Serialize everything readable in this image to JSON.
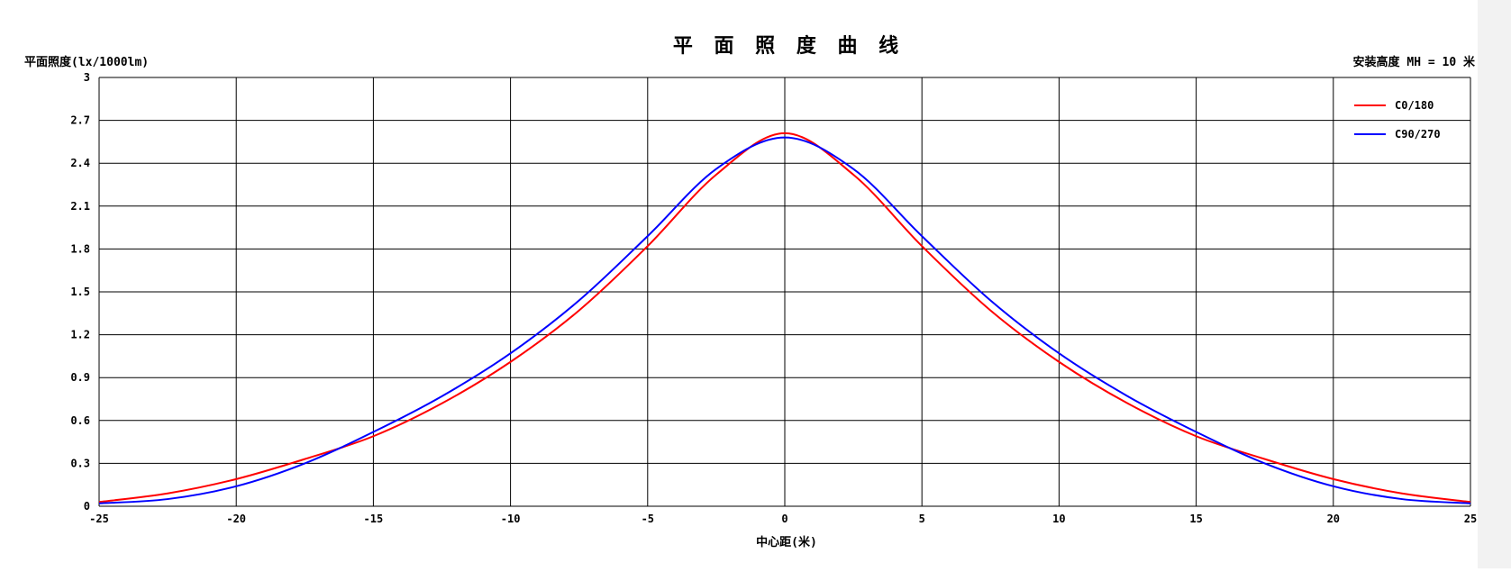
{
  "chart_data": {
    "type": "line",
    "title": "平 面 照 度 曲 线",
    "ylabel": "平面照度(lx/1000lm)",
    "xlabel": "中心距(米)",
    "annotation": "安装高度 MH = 10 米",
    "xlim": [
      -25,
      25
    ],
    "ylim": [
      0,
      3
    ],
    "xticks": [
      -25,
      -20,
      -15,
      -10,
      -5,
      0,
      5,
      10,
      15,
      20,
      25
    ],
    "xtick_labels": [
      "-25",
      "-20",
      "-15",
      "-10",
      "-5",
      "0",
      "5",
      "10",
      "15",
      "20",
      "25"
    ],
    "yticks": [
      0,
      0.3,
      0.6,
      0.9,
      1.2,
      1.5,
      1.8,
      2.1,
      2.4,
      2.7,
      3
    ],
    "ytick_labels": [
      "0",
      "0.3",
      "0.6",
      "0.9",
      "1.2",
      "1.5",
      "1.8",
      "2.1",
      "2.4",
      "2.7",
      "3"
    ],
    "grid": true,
    "legend_position": "top-right",
    "x": [
      -25,
      -22.5,
      -20,
      -17.5,
      -15,
      -12.5,
      -10,
      -7.5,
      -5,
      -2.5,
      0,
      2.5,
      5,
      7.5,
      10,
      12.5,
      15,
      17.5,
      20,
      22.5,
      25
    ],
    "series": [
      {
        "name": "C0/180",
        "color": "#ff0000",
        "values": [
          0.03,
          0.09,
          0.19,
          0.33,
          0.49,
          0.72,
          1.01,
          1.37,
          1.82,
          2.32,
          2.61,
          2.32,
          1.82,
          1.37,
          1.01,
          0.72,
          0.49,
          0.33,
          0.19,
          0.09,
          0.03
        ]
      },
      {
        "name": "C90/270",
        "color": "#0000ff",
        "values": [
          0.02,
          0.05,
          0.14,
          0.3,
          0.52,
          0.77,
          1.07,
          1.44,
          1.89,
          2.36,
          2.58,
          2.36,
          1.89,
          1.44,
          1.07,
          0.77,
          0.52,
          0.3,
          0.14,
          0.05,
          0.02
        ]
      }
    ]
  }
}
